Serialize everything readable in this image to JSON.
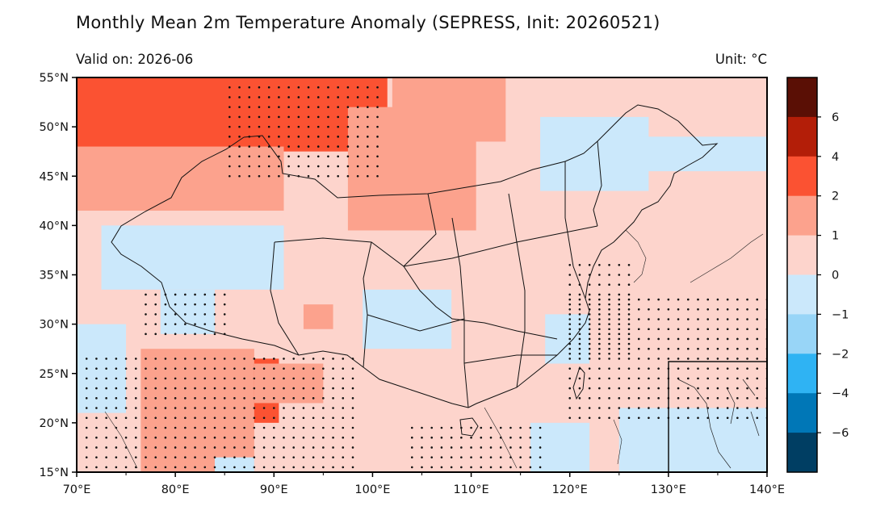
{
  "header": {
    "title": "Monthly Mean 2m Temperature Anomaly (SEPRESS, Init: 20260521)",
    "valid": "Valid on: 2026-06",
    "unit": "Unit: °C"
  },
  "map": {
    "lon_range": [
      70,
      140
    ],
    "lat_range": [
      15,
      55
    ],
    "xticks": [
      {
        "value": 70,
        "label": "70°E"
      },
      {
        "value": 80,
        "label": "80°E"
      },
      {
        "value": 90,
        "label": "90°E"
      },
      {
        "value": 100,
        "label": "100°E"
      },
      {
        "value": 110,
        "label": "110°E"
      },
      {
        "value": 120,
        "label": "120°E"
      },
      {
        "value": 130,
        "label": "130°E"
      },
      {
        "value": 140,
        "label": "140°E"
      }
    ],
    "yticks": [
      {
        "value": 55,
        "label": "55°N"
      },
      {
        "value": 50,
        "label": "50°N"
      },
      {
        "value": 45,
        "label": "45°N"
      },
      {
        "value": 40,
        "label": "40°N"
      },
      {
        "value": 35,
        "label": "35°N"
      },
      {
        "value": 30,
        "label": "30°N"
      },
      {
        "value": 25,
        "label": "25°N"
      },
      {
        "value": 20,
        "label": "20°N"
      },
      {
        "value": 15,
        "label": "15°N"
      }
    ],
    "background_color": "#fdd4cc",
    "anomaly_regions": [
      {
        "level": "2 to 4",
        "color": "#fb5232",
        "lon": [
          70,
          101.5
        ],
        "lat": [
          47.5,
          55
        ]
      },
      {
        "level": "2 to 4",
        "color": "#fb5232",
        "lon": [
          83,
          90.5
        ],
        "lat": [
          20,
          26.5
        ]
      },
      {
        "level": "2 to 4",
        "color": "#fb5232",
        "lon": [
          79,
          85
        ],
        "lat": [
          17,
          22
        ]
      },
      {
        "level": "1 to 2",
        "color": "#fca28d",
        "lon": [
          70,
          91
        ],
        "lat": [
          41.5,
          48
        ]
      },
      {
        "level": "1 to 2",
        "color": "#fca28d",
        "lon": [
          97.5,
          110.5
        ],
        "lat": [
          39.5,
          52
        ]
      },
      {
        "level": "1 to 2",
        "color": "#fca28d",
        "lon": [
          102,
          113.5
        ],
        "lat": [
          48.5,
          55
        ]
      },
      {
        "level": "1 to 2",
        "color": "#fca28d",
        "lon": [
          76.5,
          88
        ],
        "lat": [
          15,
          27.5
        ]
      },
      {
        "level": "1 to 2",
        "color": "#fca28d",
        "lon": [
          88,
          95
        ],
        "lat": [
          22,
          26
        ]
      },
      {
        "level": "1 to 2",
        "color": "#fca28d",
        "lon": [
          93,
          96
        ],
        "lat": [
          29.5,
          32
        ]
      },
      {
        "level": "-1 to 0",
        "color": "#cbe8fb",
        "lon": [
          70,
          75
        ],
        "lat": [
          21,
          30
        ]
      },
      {
        "level": "-1 to 0",
        "color": "#cbe8fb",
        "lon": [
          72.5,
          91
        ],
        "lat": [
          33.5,
          40
        ]
      },
      {
        "level": "-1 to 0",
        "color": "#cbe8fb",
        "lon": [
          78.5,
          84
        ],
        "lat": [
          29,
          33.5
        ]
      },
      {
        "level": "-1 to 0",
        "color": "#cbe8fb",
        "lon": [
          99,
          108
        ],
        "lat": [
          27.5,
          33.5
        ]
      },
      {
        "level": "-1 to 0",
        "color": "#cbe8fb",
        "lon": [
          117,
          128
        ],
        "lat": [
          43.5,
          51
        ]
      },
      {
        "level": "-1 to 0",
        "color": "#cbe8fb",
        "lon": [
          127,
          140
        ],
        "lat": [
          45.5,
          49
        ]
      },
      {
        "level": "-1 to 0",
        "color": "#cbe8fb",
        "lon": [
          117.5,
          122
        ],
        "lat": [
          26,
          31
        ]
      },
      {
        "level": "-1 to 0",
        "color": "#cbe8fb",
        "lon": [
          116,
          122
        ],
        "lat": [
          15,
          20
        ]
      },
      {
        "level": "-1 to 0",
        "color": "#cbe8fb",
        "lon": [
          125,
          140
        ],
        "lat": [
          15,
          21.5
        ]
      },
      {
        "level": "-1 to 0",
        "color": "#cbe8fb",
        "lon": [
          84,
          88
        ],
        "lat": [
          15,
          16.5
        ]
      }
    ],
    "significance_regions": [
      {
        "lon": [
          85.5,
          101
        ],
        "lat": [
          45,
          54.5
        ]
      },
      {
        "lon": [
          77,
          85
        ],
        "lat": [
          29,
          33
        ]
      },
      {
        "lon": [
          71,
          98
        ],
        "lat": [
          15.5,
          27
        ]
      },
      {
        "lon": [
          104,
          117.5
        ],
        "lat": [
          15.5,
          20
        ]
      },
      {
        "lon": [
          120,
          140
        ],
        "lat": [
          20.5,
          33
        ]
      },
      {
        "lon": [
          120,
          126
        ],
        "lat": [
          27,
          36
        ]
      }
    ],
    "inset": {
      "lon": [
        130,
        140
      ],
      "lat": [
        15,
        26
      ]
    }
  },
  "colorbar": {
    "colors": [
      "#5a0f05",
      "#b31e08",
      "#fb5232",
      "#fca28d",
      "#fdd4cc",
      "#cbe8fb",
      "#98d5f7",
      "#2fb3f3",
      "#0077b7",
      "#003e63"
    ],
    "ticks": [
      "6",
      "4",
      "2",
      "1",
      "0",
      "−1",
      "−2",
      "−4",
      "−6"
    ]
  }
}
